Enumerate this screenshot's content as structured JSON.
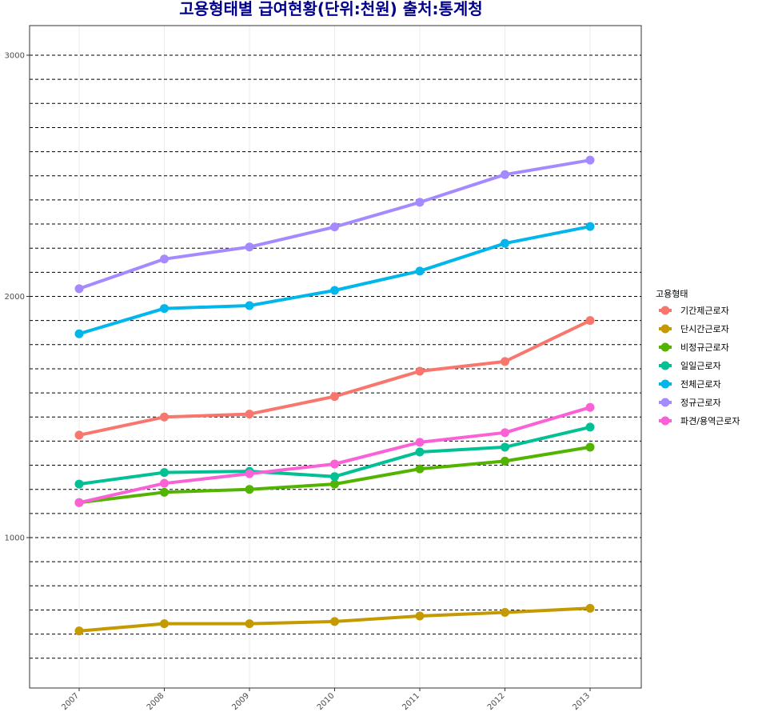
{
  "chart_data": {
    "type": "line",
    "title": "고용형태별 급여현황(단위:천원) 출처:통계청",
    "title_color": "#00008b",
    "xlabel": "",
    "ylabel": "",
    "x": [
      "2007",
      "2008",
      "2009",
      "2010",
      "2011",
      "2012",
      "2013"
    ],
    "y_ticks": [
      "1000",
      "2000",
      "3000"
    ],
    "ylim": [
      370,
      3125
    ],
    "grid": "dashed black horizontal lines every 100, light vertical lines at each year",
    "legend_position": "right",
    "legend_title": "고용형태",
    "series": [
      {
        "name": "기간제근로자",
        "color": "#F8766D",
        "values": [
          1425,
          1500,
          1512,
          1585,
          1690,
          1730,
          1900
        ]
      },
      {
        "name": "단시간근로자",
        "color": "#C49A00",
        "values": [
          613,
          643,
          643,
          652,
          675,
          690,
          707
        ]
      },
      {
        "name": "비정규근로자",
        "color": "#53B400",
        "values": [
          1145,
          1188,
          1200,
          1222,
          1285,
          1317,
          1375
        ]
      },
      {
        "name": "일일근로자",
        "color": "#00C094",
        "values": [
          1222,
          1270,
          1275,
          1253,
          1355,
          1375,
          1458
        ]
      },
      {
        "name": "전체근로자",
        "color": "#00B6EB",
        "values": [
          1845,
          1950,
          1962,
          2025,
          2105,
          2220,
          2290
        ]
      },
      {
        "name": "정규근로자",
        "color": "#A58AFF",
        "values": [
          2032,
          2155,
          2205,
          2288,
          2390,
          2505,
          2565
        ]
      },
      {
        "name": "파견/용역근로자",
        "color": "#FB61D7",
        "values": [
          1145,
          1225,
          1265,
          1305,
          1395,
          1435,
          1540
        ]
      }
    ]
  }
}
